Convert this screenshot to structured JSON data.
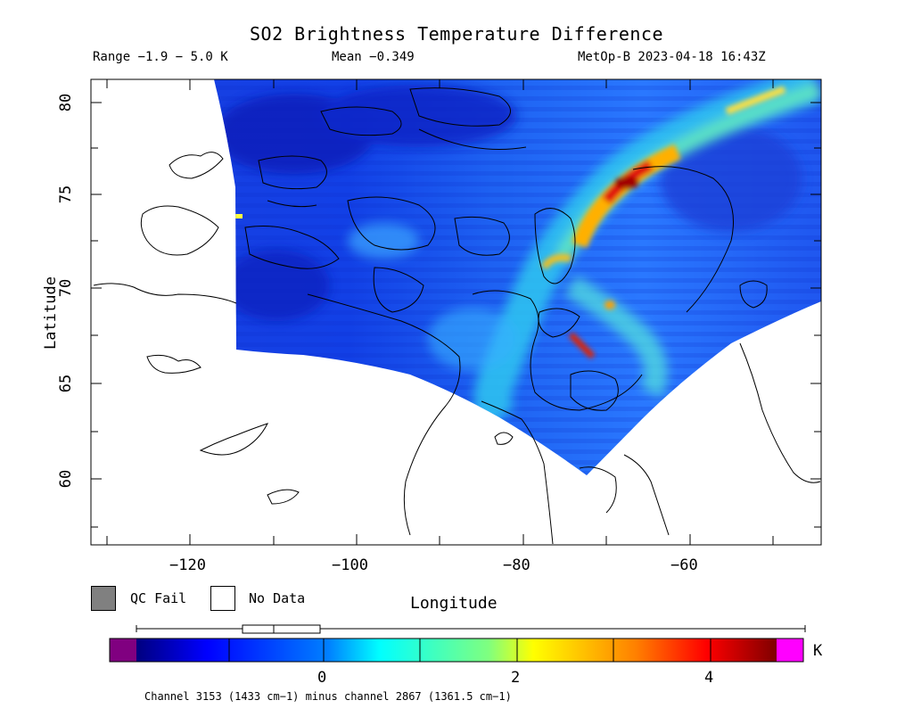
{
  "header": {
    "title": "SO2 Brightness Temperature Difference",
    "range": "Range −1.9 − 5.0 K",
    "mean": "Mean −0.349",
    "source": "MetOp-B 2023-04-18 16:43Z"
  },
  "axes": {
    "xlabel": "Longitude",
    "ylabel": "Latitude",
    "xticks": [
      "−120",
      "−100",
      "−80",
      "−60"
    ],
    "yticks": [
      "80",
      "75",
      "70",
      "65",
      "60"
    ],
    "lon_range": [
      -131,
      -44
    ],
    "lat_range": [
      56.5,
      81
    ]
  },
  "legend": {
    "qc_fail": "QC Fail",
    "no_data": "No Data",
    "qc_fail_color": "#808080",
    "no_data_color": "#ffffff"
  },
  "colorbar": {
    "unit": "K",
    "ticks": [
      "0",
      "2",
      "4"
    ],
    "under_color": "#800080",
    "over_color": "#ff00ff",
    "range": [
      -1.9,
      5.0
    ]
  },
  "caption": "Channel 3153 (1433 cm−1) minus channel 2867 (1361.5 cm−1)"
}
